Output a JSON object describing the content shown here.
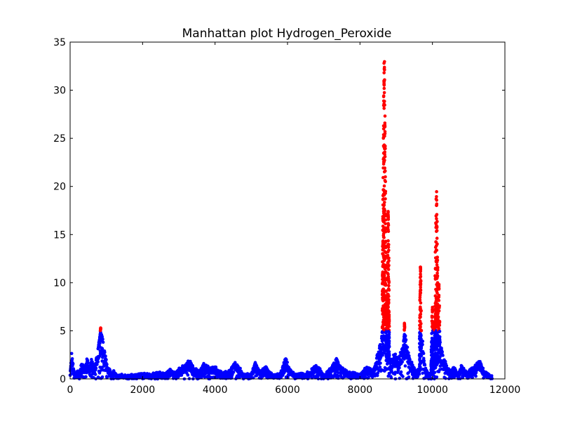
{
  "chart_data": {
    "type": "scatter",
    "title": "Manhattan plot Hydrogen_Peroxide",
    "xlabel": "",
    "ylabel": "",
    "xlim": [
      0,
      12000
    ],
    "ylim": [
      0,
      35
    ],
    "x_ticks": [
      0,
      2000,
      4000,
      6000,
      8000,
      10000,
      12000
    ],
    "y_ticks": [
      0,
      5,
      10,
      15,
      20,
      25,
      30,
      35
    ],
    "grid": false,
    "legend": "none",
    "threshold": 5,
    "colors": {
      "below_threshold": "#0000ff",
      "above_threshold": "#ff0000"
    },
    "x_range_of_points": [
      0,
      11650
    ],
    "background_profile": [
      [
        0,
        0.6
      ],
      [
        40,
        2.9
      ],
      [
        90,
        1.2
      ],
      [
        150,
        0.4
      ],
      [
        200,
        1.0
      ],
      [
        250,
        0.6
      ],
      [
        320,
        1.9
      ],
      [
        400,
        1.2
      ],
      [
        470,
        2.3
      ],
      [
        540,
        0.9
      ],
      [
        600,
        2.6
      ],
      [
        650,
        1.0
      ],
      [
        720,
        2.2
      ],
      [
        790,
        3.6
      ],
      [
        840,
        4.8
      ],
      [
        900,
        4.2
      ],
      [
        960,
        2.8
      ],
      [
        1020,
        1.6
      ],
      [
        1080,
        1.1
      ],
      [
        1140,
        0.6
      ],
      [
        1200,
        1.0
      ],
      [
        1300,
        0.3
      ],
      [
        1400,
        0.5
      ],
      [
        1600,
        0.4
      ],
      [
        1800,
        0.6
      ],
      [
        2000,
        0.7
      ],
      [
        2200,
        0.5
      ],
      [
        2400,
        0.8
      ],
      [
        2600,
        0.6
      ],
      [
        2750,
        1.1
      ],
      [
        2900,
        0.7
      ],
      [
        3050,
        1.3
      ],
      [
        3200,
        1.7
      ],
      [
        3300,
        2.0
      ],
      [
        3400,
        1.4
      ],
      [
        3550,
        0.8
      ],
      [
        3700,
        1.7
      ],
      [
        3850,
        1.2
      ],
      [
        4000,
        1.3
      ],
      [
        4200,
        0.7
      ],
      [
        4400,
        0.9
      ],
      [
        4550,
        1.9
      ],
      [
        4650,
        1.4
      ],
      [
        4800,
        0.5
      ],
      [
        5000,
        0.6
      ],
      [
        5100,
        1.8
      ],
      [
        5250,
        0.9
      ],
      [
        5400,
        1.3
      ],
      [
        5600,
        0.4
      ],
      [
        5800,
        0.7
      ],
      [
        5950,
        2.3
      ],
      [
        6050,
        1.2
      ],
      [
        6200,
        0.5
      ],
      [
        6400,
        0.6
      ],
      [
        6600,
        0.8
      ],
      [
        6800,
        1.6
      ],
      [
        7000,
        0.5
      ],
      [
        7200,
        1.2
      ],
      [
        7350,
        2.2
      ],
      [
        7500,
        1.3
      ],
      [
        7650,
        0.8
      ],
      [
        7800,
        0.7
      ],
      [
        8000,
        0.6
      ],
      [
        8200,
        1.4
      ],
      [
        8350,
        0.9
      ],
      [
        8450,
        2.1
      ],
      [
        8550,
        3.8
      ],
      [
        8620,
        4.9
      ],
      [
        8680,
        5.0
      ],
      [
        8750,
        3.0
      ],
      [
        8850,
        2.0
      ],
      [
        8950,
        2.8
      ],
      [
        9050,
        2.0
      ],
      [
        9150,
        3.2
      ],
      [
        9250,
        4.5
      ],
      [
        9350,
        2.5
      ],
      [
        9450,
        1.5
      ],
      [
        9550,
        0.8
      ],
      [
        9650,
        1.5
      ],
      [
        9720,
        4.6
      ],
      [
        9800,
        1.2
      ],
      [
        9900,
        0.5
      ],
      [
        10000,
        1.2
      ],
      [
        10100,
        2.5
      ],
      [
        10180,
        4.2
      ],
      [
        10300,
        2.5
      ],
      [
        10400,
        1.4
      ],
      [
        10500,
        0.9
      ],
      [
        10600,
        1.4
      ],
      [
        10700,
        0.5
      ],
      [
        10800,
        1.5
      ],
      [
        10950,
        0.7
      ],
      [
        11100,
        1.2
      ],
      [
        11300,
        2.0
      ],
      [
        11400,
        1.1
      ],
      [
        11500,
        0.6
      ],
      [
        11650,
        0.3
      ]
    ],
    "peaks": [
      {
        "center": 840,
        "width": 45,
        "max": 5.3
      },
      {
        "center": 8670,
        "width": 55,
        "max": 33.0
      },
      {
        "center": 8780,
        "width": 30,
        "max": 18.0
      },
      {
        "center": 9230,
        "width": 25,
        "max": 5.8
      },
      {
        "center": 9670,
        "width": 30,
        "max": 11.8
      },
      {
        "center": 10000,
        "width": 40,
        "max": 7.5
      },
      {
        "center": 10110,
        "width": 55,
        "max": 19.5
      },
      {
        "center": 10180,
        "width": 30,
        "max": 10.0
      }
    ]
  }
}
